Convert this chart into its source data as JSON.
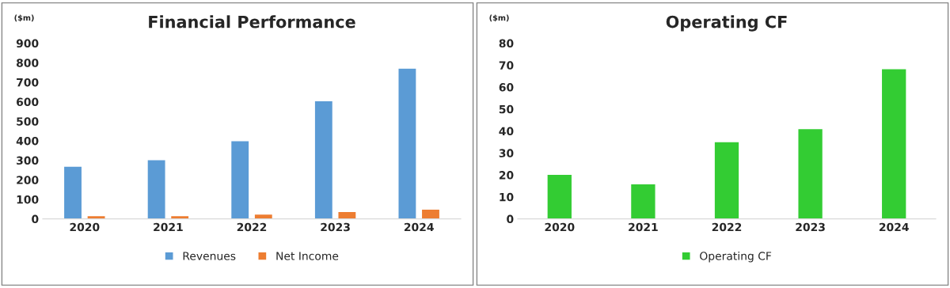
{
  "chart_data": [
    {
      "type": "bar",
      "title": "Financial Performance",
      "ylabel": "($m)",
      "categories": [
        "2020",
        "2021",
        "2022",
        "2023",
        "2024"
      ],
      "series": [
        {
          "name": "Revenues",
          "color": "#5b9bd5",
          "values": [
            270,
            303,
            401,
            605,
            772
          ]
        },
        {
          "name": "Net Income",
          "color": "#ed7d31",
          "values": [
            17,
            17,
            25,
            38,
            50
          ]
        }
      ],
      "ylim": [
        0,
        900
      ],
      "yticks": [
        0,
        100,
        200,
        300,
        400,
        500,
        600,
        700,
        800,
        900
      ],
      "grid": false,
      "legend": "bottom"
    },
    {
      "type": "bar",
      "title": "Operating CF",
      "ylabel": "($m)",
      "categories": [
        "2020",
        "2021",
        "2022",
        "2023",
        "2024"
      ],
      "series": [
        {
          "name": "Operating CF",
          "color": "#33cc33",
          "values": [
            20.3,
            16,
            35.2,
            41.1,
            68.4
          ]
        }
      ],
      "ylim": [
        0,
        80
      ],
      "yticks": [
        0,
        10,
        20,
        30,
        40,
        50,
        60,
        70,
        80
      ],
      "grid": false,
      "legend": "bottom"
    }
  ]
}
